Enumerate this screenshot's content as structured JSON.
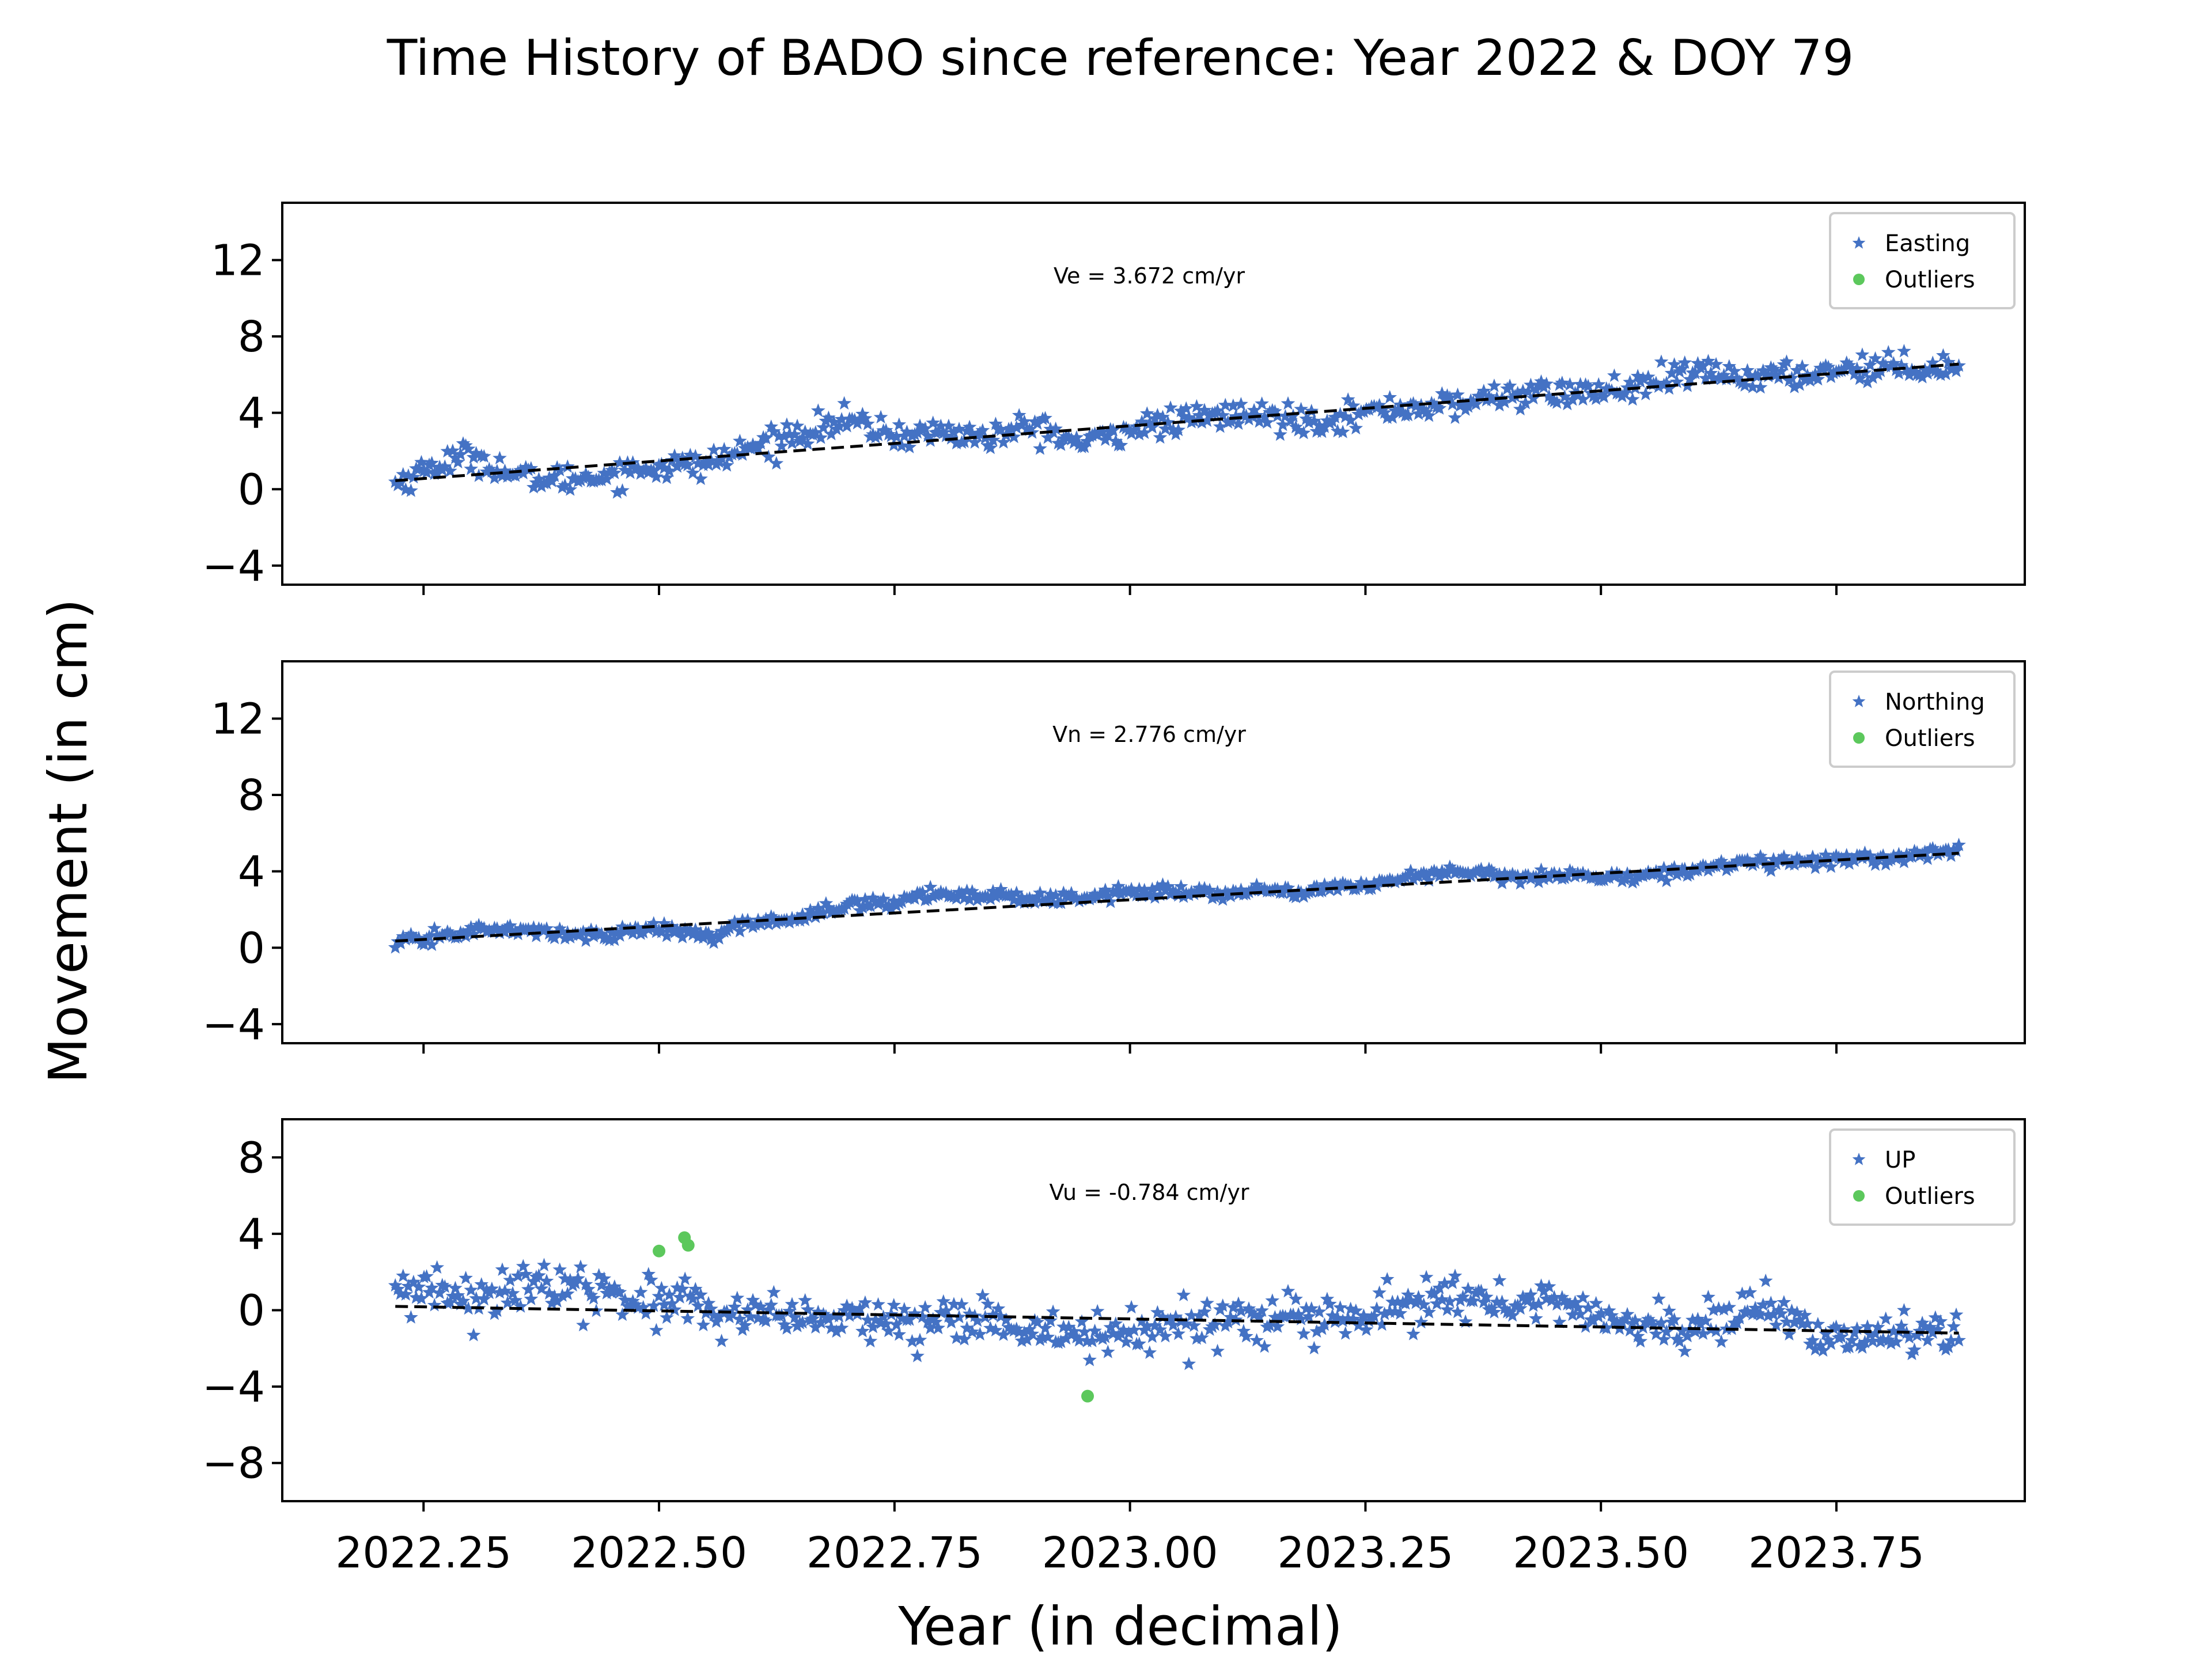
{
  "figure": {
    "title": "Time History of BADO since reference: Year 2022 & DOY 79",
    "xlabel": "Year (in decimal)",
    "ylabel": "Movement (in cm)"
  },
  "chart_data": {
    "type": "scatter",
    "xlim": [
      2022.1,
      2023.95
    ],
    "x_ticks": [
      2022.25,
      2022.5,
      2022.75,
      2023.0,
      2023.25,
      2023.5,
      2023.75
    ],
    "x_tick_labels": [
      "2022.25",
      "2022.50",
      "2022.75",
      "2023.00",
      "2023.25",
      "2023.50",
      "2023.75"
    ],
    "x_range": [
      2022.22,
      2023.88
    ],
    "colors": {
      "series": "#4472c4",
      "outliers": "#5cc85c",
      "fit": "#000000"
    },
    "panels": [
      {
        "legend": [
          "Easting",
          "Outliers"
        ],
        "legend_position": "top-right",
        "rate_label": "Ve =  3.672 cm/yr",
        "ylim": [
          -5,
          15
        ],
        "y_ticks": [
          -4,
          0,
          4,
          8,
          12
        ],
        "y_tick_labels": [
          "−4",
          "0",
          "4",
          "8",
          "12"
        ],
        "trend": [
          [
            2022.22,
            0.45
          ],
          [
            2023.88,
            6.55
          ]
        ],
        "anchors": [
          [
            2022.22,
            0.3
          ],
          [
            2022.26,
            1.2
          ],
          [
            2022.3,
            1.8
          ],
          [
            2022.35,
            0.6
          ],
          [
            2022.4,
            0.5
          ],
          [
            2022.45,
            0.8
          ],
          [
            2022.5,
            1.2
          ],
          [
            2022.55,
            1.3
          ],
          [
            2022.6,
            2.2
          ],
          [
            2022.65,
            3.0
          ],
          [
            2022.7,
            3.6
          ],
          [
            2022.75,
            2.8
          ],
          [
            2022.8,
            3.0
          ],
          [
            2022.85,
            2.7
          ],
          [
            2022.9,
            3.3
          ],
          [
            2022.95,
            2.3
          ],
          [
            2023.0,
            3.2
          ],
          [
            2023.05,
            3.5
          ],
          [
            2023.1,
            3.9
          ],
          [
            2023.15,
            3.8
          ],
          [
            2023.2,
            3.6
          ],
          [
            2023.25,
            4.0
          ],
          [
            2023.3,
            4.3
          ],
          [
            2023.35,
            4.4
          ],
          [
            2023.4,
            5.0
          ],
          [
            2023.45,
            5.0
          ],
          [
            2023.5,
            5.1
          ],
          [
            2023.55,
            5.4
          ],
          [
            2023.6,
            6.1
          ],
          [
            2023.65,
            5.9
          ],
          [
            2023.7,
            5.9
          ],
          [
            2023.75,
            6.3
          ],
          [
            2023.8,
            6.4
          ],
          [
            2023.88,
            6.4
          ]
        ],
        "spread": 0.65,
        "outliers": []
      },
      {
        "legend": [
          "Northing",
          "Outliers"
        ],
        "legend_position": "top-right",
        "rate_label": "Vn =  2.776 cm/yr",
        "ylim": [
          -5,
          15
        ],
        "y_ticks": [
          -4,
          0,
          4,
          8,
          12
        ],
        "y_tick_labels": [
          "−4",
          "0",
          "4",
          "8",
          "12"
        ],
        "trend": [
          [
            2022.22,
            0.35
          ],
          [
            2023.88,
            4.95
          ]
        ],
        "anchors": [
          [
            2022.22,
            0.2
          ],
          [
            2022.27,
            0.6
          ],
          [
            2022.3,
            0.9
          ],
          [
            2022.35,
            0.9
          ],
          [
            2022.4,
            0.7
          ],
          [
            2022.45,
            0.7
          ],
          [
            2022.5,
            1.0
          ],
          [
            2022.55,
            0.6
          ],
          [
            2022.6,
            1.3
          ],
          [
            2022.65,
            1.6
          ],
          [
            2022.7,
            2.2
          ],
          [
            2022.75,
            2.4
          ],
          [
            2022.8,
            2.9
          ],
          [
            2022.85,
            2.7
          ],
          [
            2022.9,
            2.6
          ],
          [
            2022.95,
            2.6
          ],
          [
            2023.0,
            2.9
          ],
          [
            2023.05,
            2.9
          ],
          [
            2023.1,
            2.9
          ],
          [
            2023.15,
            2.9
          ],
          [
            2023.2,
            3.0
          ],
          [
            2023.25,
            3.3
          ],
          [
            2023.3,
            3.7
          ],
          [
            2023.35,
            4.0
          ],
          [
            2023.4,
            3.7
          ],
          [
            2023.45,
            3.8
          ],
          [
            2023.5,
            3.7
          ],
          [
            2023.55,
            3.8
          ],
          [
            2023.6,
            4.1
          ],
          [
            2023.65,
            4.5
          ],
          [
            2023.7,
            4.5
          ],
          [
            2023.75,
            4.6
          ],
          [
            2023.8,
            4.7
          ],
          [
            2023.88,
            5.1
          ]
        ],
        "spread": 0.3,
        "outliers": []
      },
      {
        "legend": [
          "UP",
          "Outliers"
        ],
        "legend_position": "top-right",
        "rate_label": "Vu = -0.784 cm/yr",
        "ylim": [
          -10,
          10
        ],
        "y_ticks": [
          -8,
          -4,
          0,
          4,
          8
        ],
        "y_tick_labels": [
          "−8",
          "−4",
          "0",
          "4",
          "8"
        ],
        "trend": [
          [
            2022.22,
            0.2
          ],
          [
            2023.88,
            -1.2
          ]
        ],
        "anchors": [
          [
            2022.22,
            0.8
          ],
          [
            2022.27,
            0.9
          ],
          [
            2022.32,
            0.8
          ],
          [
            2022.37,
            1.6
          ],
          [
            2022.42,
            0.8
          ],
          [
            2022.47,
            0.8
          ],
          [
            2022.52,
            0.4
          ],
          [
            2022.57,
            -0.6
          ],
          [
            2022.62,
            -0.2
          ],
          [
            2022.67,
            -0.6
          ],
          [
            2022.72,
            -0.4
          ],
          [
            2022.77,
            -0.8
          ],
          [
            2022.82,
            -0.5
          ],
          [
            2022.87,
            -1.0
          ],
          [
            2022.92,
            -1.0
          ],
          [
            2022.97,
            -1.3
          ],
          [
            2023.02,
            -1.2
          ],
          [
            2023.07,
            -0.7
          ],
          [
            2023.12,
            -0.6
          ],
          [
            2023.17,
            -0.6
          ],
          [
            2023.22,
            -0.6
          ],
          [
            2023.27,
            -0.2
          ],
          [
            2023.32,
            0.6
          ],
          [
            2023.37,
            0.5
          ],
          [
            2023.42,
            0.1
          ],
          [
            2023.47,
            0.4
          ],
          [
            2023.52,
            -0.5
          ],
          [
            2023.57,
            -1.0
          ],
          [
            2023.62,
            -0.6
          ],
          [
            2023.67,
            0.0
          ],
          [
            2023.72,
            -1.0
          ],
          [
            2023.77,
            -1.6
          ],
          [
            2023.82,
            -1.1
          ],
          [
            2023.88,
            -1.3
          ]
        ],
        "spread": 1.1,
        "outliers": [
          [
            2022.5,
            3.1
          ],
          [
            2022.527,
            3.8
          ],
          [
            2022.531,
            3.4
          ],
          [
            2022.955,
            -4.5
          ]
        ]
      }
    ]
  }
}
